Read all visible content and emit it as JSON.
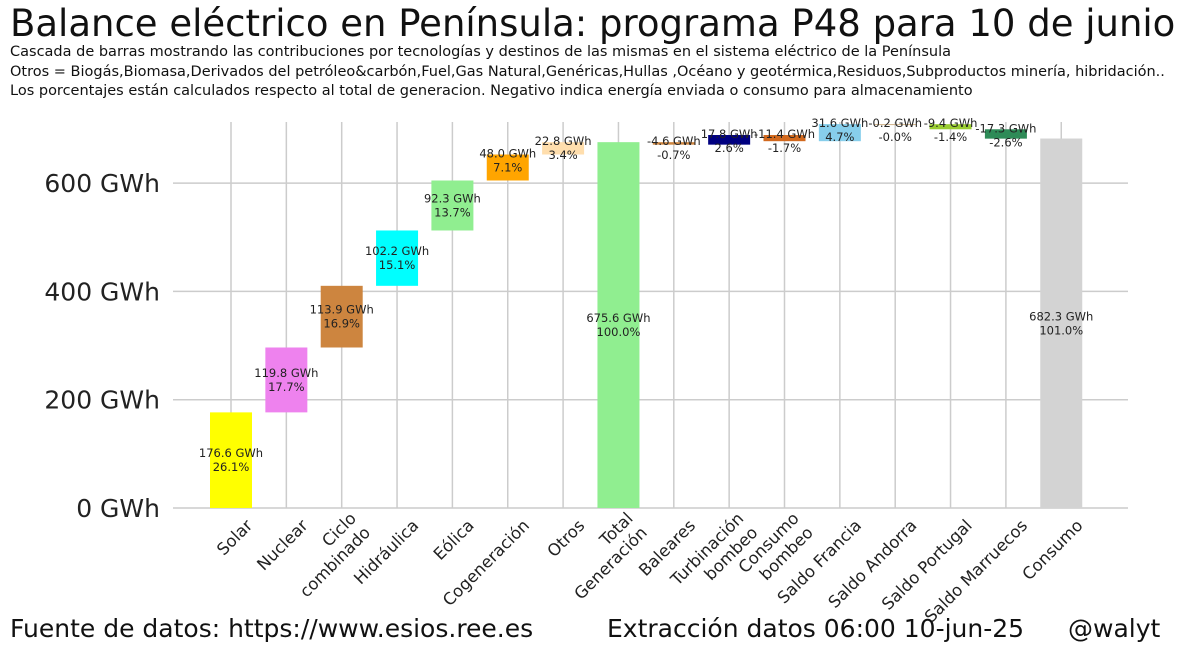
{
  "header": {
    "title": "Balance eléctrico en Península: programa P48 para 10 de junio",
    "subtitle1": "Cascada de barras mostrando las contribuciones por tecnologías y destinos de las mismas en el sistema eléctrico de la Península",
    "subtitle2": "Otros = Biogás,Biomasa,Derivados del petróleo&carbón,Fuel,Gas Natural,Genéricas,Hullas ,Océano y geotérmica,Residuos,Subproductos minería, hibridación..",
    "subtitle3": "Los porcentajes están calculados respecto al total de generacion. Negativo indica energía enviada o consumo para almacenamiento"
  },
  "footer": {
    "source": "Fuente de datos: https://www.esios.ree.es",
    "extraction": "Extracción datos 06:00 10-jun-25",
    "author": "@walyt"
  },
  "chart_data": {
    "type": "waterfall",
    "title": "Balance eléctrico en Península: programa P48 para 10 de junio",
    "unit": "GWh",
    "ylim": [
      0,
      700
    ],
    "yticks": [
      0,
      200,
      400,
      600
    ],
    "ytick_labels": [
      "0 GWh",
      "200 GWh",
      "400 GWh",
      "600 GWh"
    ],
    "grid": true,
    "bars": [
      {
        "category": "Solar",
        "value": 176.6,
        "label": "176.6 GWh",
        "pct": "26.1%",
        "color": "#ffff00",
        "kind": "delta"
      },
      {
        "category": "Nuclear",
        "value": 119.8,
        "label": "119.8 GWh",
        "pct": "17.7%",
        "color": "#ee82ee",
        "kind": "delta"
      },
      {
        "category": "Ciclo\ncombinado",
        "value": 113.9,
        "label": "113.9 GWh",
        "pct": "16.9%",
        "color": "#cd853f",
        "kind": "delta"
      },
      {
        "category": "Hidráulica",
        "value": 102.2,
        "label": "102.2 GWh",
        "pct": "15.1%",
        "color": "#00ffff",
        "kind": "delta"
      },
      {
        "category": "Eólica",
        "value": 92.3,
        "label": "92.3 GWh",
        "pct": "13.7%",
        "color": "#90ee90",
        "kind": "delta"
      },
      {
        "category": "Cogeneración",
        "value": 48.0,
        "label": "48.0 GWh",
        "pct": "7.1%",
        "color": "#ffa500",
        "kind": "delta"
      },
      {
        "category": "Otros",
        "value": 22.8,
        "label": "22.8 GWh",
        "pct": "3.4%",
        "color": "#ffdead",
        "kind": "delta"
      },
      {
        "category": "Total\nGeneración",
        "value": 675.6,
        "label": "675.6 GWh",
        "pct": "100.0%",
        "color": "#90ee90",
        "kind": "total"
      },
      {
        "category": "Baleares",
        "value": -4.6,
        "label": "-4.6 GWh",
        "pct": "-0.7%",
        "color": "#cd853f",
        "kind": "delta"
      },
      {
        "category": "Turbinación\nbombeo",
        "value": 17.8,
        "label": "17.8 GWh",
        "pct": "2.6%",
        "color": "#000080",
        "kind": "delta"
      },
      {
        "category": "Consumo\nbombeo",
        "value": -11.4,
        "label": "-11.4 GWh",
        "pct": "-1.7%",
        "color": "#d2691e",
        "kind": "delta"
      },
      {
        "category": "Saldo Francia",
        "value": 31.6,
        "label": "31.6 GWh",
        "pct": "4.7%",
        "color": "#87ceeb",
        "kind": "delta"
      },
      {
        "category": "Saldo Andorra",
        "value": -0.2,
        "label": "-0.2 GWh",
        "pct": "-0.0%",
        "color": "#d2b48c",
        "kind": "delta"
      },
      {
        "category": "Saldo Portugal",
        "value": -9.4,
        "label": "-9.4 GWh",
        "pct": "-1.4%",
        "color": "#9acd32",
        "kind": "delta"
      },
      {
        "category": "Saldo Marruecos",
        "value": -17.3,
        "label": "-17.3 GWh",
        "pct": "-2.6%",
        "color": "#2e8b57",
        "kind": "delta"
      },
      {
        "category": "Consumo",
        "value": 682.3,
        "label": "682.3 GWh",
        "pct": "101.0%",
        "color": "#d3d3d3",
        "kind": "total"
      }
    ]
  }
}
